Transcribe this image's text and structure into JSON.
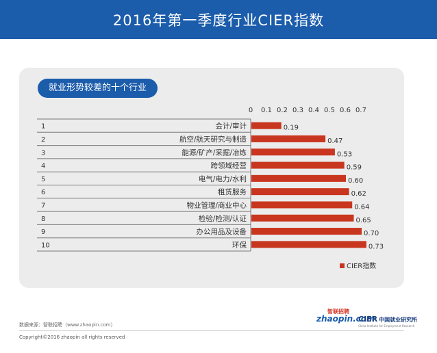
{
  "header": {
    "title": "2016年第一季度行业CIER指数"
  },
  "panel": {
    "subtitle": "就业形势较差的十个行业"
  },
  "chart_data": {
    "type": "bar",
    "orientation": "horizontal",
    "title": "就业形势较差的十个行业",
    "ranks": [
      "1",
      "2",
      "3",
      "4",
      "5",
      "6",
      "7",
      "8",
      "9",
      "10"
    ],
    "categories": [
      "会计/审计",
      "航空/航天研究与制造",
      "能源/矿产/采掘/冶炼",
      "跨领域经营",
      "电气/电力/水利",
      "租赁服务",
      "物业管理/商业中心",
      "检验/检测/认证",
      "办公用品及设备",
      "环保"
    ],
    "values": [
      0.19,
      0.47,
      0.53,
      0.59,
      0.6,
      0.62,
      0.64,
      0.65,
      0.7,
      0.73
    ],
    "value_labels": [
      "0.19",
      "0.47",
      "0.53",
      "0.59",
      "0.60",
      "0.62",
      "0.64",
      "0.65",
      "0.70",
      "0.73"
    ],
    "x_ticks": [
      "0",
      "0.1",
      "0.2",
      "0.3",
      "0.4",
      "0.5",
      "0.6",
      "0.7"
    ],
    "xlim": [
      0,
      0.7
    ],
    "axis_position": "top",
    "grid": false,
    "series": [
      {
        "name": "CIER指数",
        "color": "#c9361f",
        "values": [
          0.19,
          0.47,
          0.53,
          0.59,
          0.6,
          0.62,
          0.64,
          0.65,
          0.7,
          0.73
        ]
      }
    ],
    "legend": {
      "label": "CIER指数",
      "placement": "bottom-right"
    }
  },
  "footer": {
    "source": "数据来源：智联招聘（www.zhaopin.com）",
    "copyright": "Copyright©2016 zhaopin all rights reserved"
  },
  "logos": {
    "zhaopin_text": "zhaopin.com",
    "zhaopin_cn": "智联招聘",
    "cier": "CIER",
    "cier_cn": "中国就业研究所",
    "cier_sub": "China Institute for Employment Research"
  },
  "colors": {
    "header": "#1b5cab",
    "bar": "#c9361f",
    "panel": "#ececec"
  }
}
